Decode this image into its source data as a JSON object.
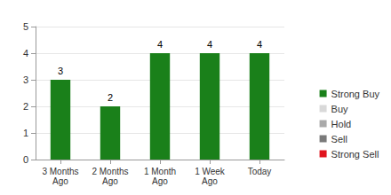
{
  "chart_data": {
    "type": "bar",
    "categories": [
      "3 Months\nAgo",
      "2 Months\nAgo",
      "1 Month\nAgo",
      "1 Week\nAgo",
      "Today"
    ],
    "series": [
      {
        "name": "Strong Buy",
        "color": "#1a801a",
        "values": [
          3,
          2,
          4,
          4,
          4
        ]
      },
      {
        "name": "Buy",
        "color": "#d9d9d9",
        "values": [
          null,
          null,
          null,
          null,
          null
        ]
      },
      {
        "name": "Hold",
        "color": "#aaaaaa",
        "values": [
          null,
          null,
          null,
          null,
          null
        ]
      },
      {
        "name": "Sell",
        "color": "#7a7a7a",
        "values": [
          null,
          null,
          null,
          null,
          null
        ]
      },
      {
        "name": "Strong Sell",
        "color": "#e0141e",
        "values": [
          null,
          null,
          null,
          null,
          null
        ]
      }
    ],
    "ylim": [
      0,
      5
    ],
    "yticks": [
      0,
      1,
      2,
      3,
      4,
      5
    ],
    "grid": true,
    "stacked": true,
    "data_labels": true,
    "legend": "right"
  }
}
